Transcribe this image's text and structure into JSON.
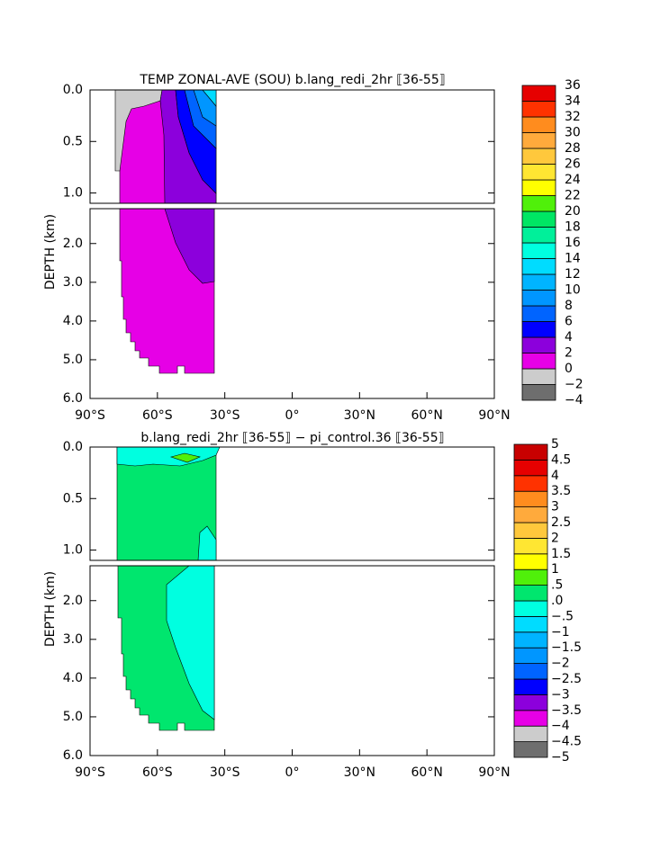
{
  "chart_data": [
    {
      "type": "contour",
      "title": "TEMP ZONAL-AVE (SOU) b.lang_redi_2hr ⟦36-55⟧",
      "ylabel": "DEPTH (km)",
      "xlim": [
        -90,
        90
      ],
      "xticks": [
        {
          "value": -90,
          "label": "90°S"
        },
        {
          "value": -60,
          "label": "60°S"
        },
        {
          "value": -30,
          "label": "30°S"
        },
        {
          "value": 0,
          "label": "0°"
        },
        {
          "value": 30,
          "label": "30°N"
        },
        {
          "value": 60,
          "label": "60°N"
        },
        {
          "value": 90,
          "label": "90°N"
        }
      ],
      "panels": [
        {
          "ylim": [
            0,
            1.1
          ],
          "yticks": [
            {
              "value": 0,
              "label": "0.0"
            },
            0.5,
            {
              "value": 1,
              "label": "1.0"
            }
          ]
        },
        {
          "ylim": [
            1.1,
            6
          ],
          "yticks": [
            {
              "value": 2,
              "label": "2.0"
            },
            {
              "value": 3,
              "label": "3.0"
            },
            {
              "value": 4,
              "label": "4.0"
            },
            {
              "value": 5,
              "label": "5.0"
            },
            {
              "value": 6,
              "label": "6.0"
            }
          ]
        }
      ],
      "colorbar": {
        "levels": [
          {
            "value": -4,
            "label": "−4"
          },
          {
            "value": -2,
            "label": "−2"
          },
          0,
          2,
          4,
          6,
          8,
          10,
          12,
          14,
          16,
          18,
          20,
          22,
          24,
          26,
          28,
          30,
          32,
          34,
          36
        ],
        "colors": [
          "#6e6e6e",
          "#cccccc",
          "#e600e6",
          "#8c00dc",
          "#0000ff",
          "#0064ff",
          "#0096ff",
          "#00b4ff",
          "#00dcff",
          "#00ffe0",
          "#00f09a",
          "#00e664",
          "#50f00a",
          "#ffff00",
          "#ffe632",
          "#ffc83c",
          "#ffaa3c",
          "#ff8c1e",
          "#ff3200",
          "#e60000"
        ]
      }
    },
    {
      "type": "contour",
      "title": "b.lang_redi_2hr ⟦36-55⟧ − pi_control.36 ⟦36-55⟧",
      "ylabel": "DEPTH (km)",
      "xlim": [
        -90,
        90
      ],
      "xticks": [
        {
          "value": -90,
          "label": "90°S"
        },
        {
          "value": -60,
          "label": "60°S"
        },
        {
          "value": -30,
          "label": "30°S"
        },
        {
          "value": 0,
          "label": "0°"
        },
        {
          "value": 30,
          "label": "30°N"
        },
        {
          "value": 60,
          "label": "60°N"
        },
        {
          "value": 90,
          "label": "90°N"
        }
      ],
      "panels": [
        {
          "ylim": [
            0,
            1.1
          ],
          "yticks": [
            {
              "value": 0,
              "label": "0.0"
            },
            0.5,
            {
              "value": 1,
              "label": "1.0"
            }
          ]
        },
        {
          "ylim": [
            1.1,
            6
          ],
          "yticks": [
            {
              "value": 2,
              "label": "2.0"
            },
            {
              "value": 3,
              "label": "3.0"
            },
            {
              "value": 4,
              "label": "4.0"
            },
            {
              "value": 5,
              "label": "5.0"
            },
            {
              "value": 6,
              "label": "6.0"
            }
          ]
        }
      ],
      "colorbar": {
        "levels": [
          {
            "value": -5,
            "label": "−5"
          },
          {
            "value": -4.5,
            "label": "−4.5"
          },
          {
            "value": -4,
            "label": "−4"
          },
          {
            "value": -3.5,
            "label": "−3.5"
          },
          {
            "value": -3,
            "label": "−3"
          },
          {
            "value": -2.5,
            "label": "−2.5"
          },
          {
            "value": -2,
            "label": "−2"
          },
          {
            "value": -1.5,
            "label": "−1.5"
          },
          {
            "value": -1,
            "label": "−1"
          },
          {
            "value": -0.5,
            "label": "−.5"
          },
          {
            "value": 0,
            "label": ".0"
          },
          {
            "value": 0.5,
            "label": ".5"
          },
          1,
          1.5,
          2,
          2.5,
          3,
          3.5,
          4,
          4.5,
          5
        ],
        "colors": [
          "#6e6e6e",
          "#cccccc",
          "#e600e6",
          "#8c00dc",
          "#0000ff",
          "#0064ff",
          "#0096ff",
          "#00b4ff",
          "#00dcff",
          "#00ffe0",
          "#00e66e",
          "#50f00a",
          "#ffff00",
          "#ffe632",
          "#ffc83c",
          "#ffaa3c",
          "#ff8c1e",
          "#ff3200",
          "#e60000",
          "#c80000"
        ]
      }
    }
  ]
}
